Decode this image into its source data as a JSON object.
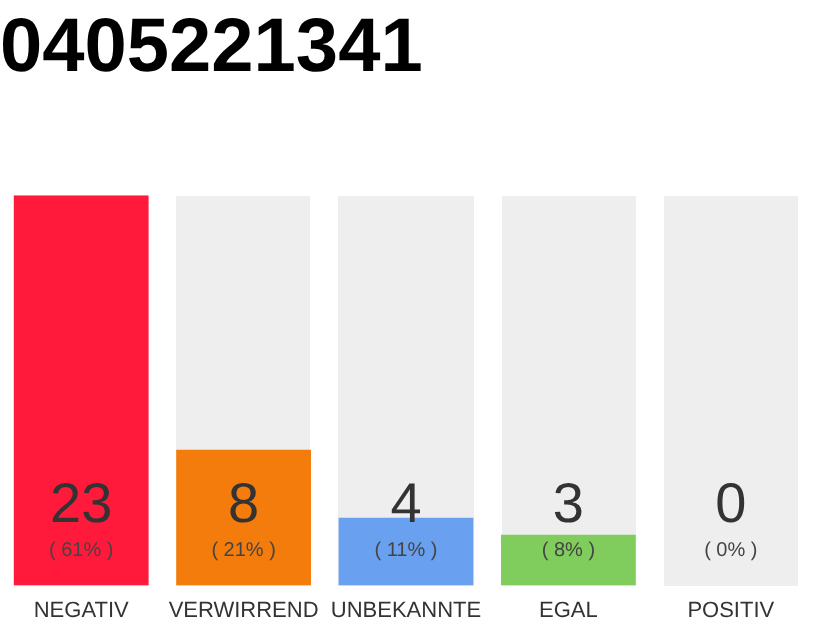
{
  "chart_data": {
    "type": "bar",
    "title": "0405221341",
    "categories": [
      "NEGATIV",
      "VERWIRREND",
      "UNBEKANNTE",
      "EGAL",
      "POSITIV"
    ],
    "values": [
      23,
      8,
      4,
      3,
      0
    ],
    "colors": [
      "#ff1a3c",
      "#f47c0c",
      "#6aa0f0",
      "#80cc5c",
      "#cccccc"
    ],
    "value_labels": [
      "23\n( 61% )",
      "8\n( 21% )",
      "4\n( 11% )",
      "3\n( 8% )",
      "0\n( 0% )"
    ],
    "ylim": [
      0,
      23
    ],
    "tick_labels": "x",
    "grid": false,
    "legend": false
  }
}
